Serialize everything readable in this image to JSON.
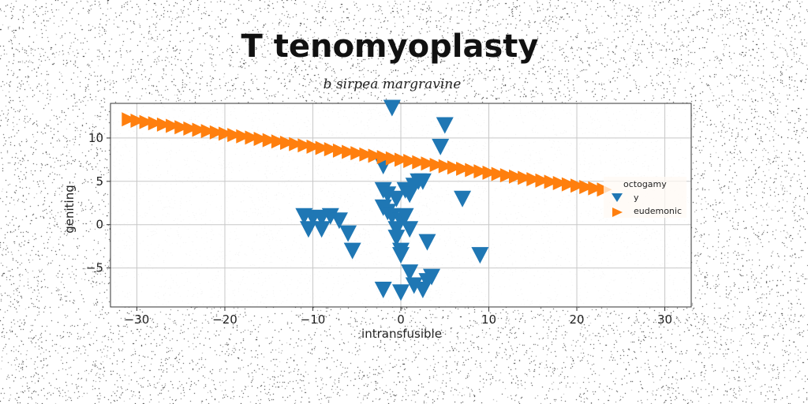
{
  "chart_data": {
    "type": "scatter",
    "title": "T tenomyoplasty",
    "subtitle": "b sirpea margravine",
    "xlabel": "intransfusible",
    "ylabel": "geniting",
    "xlim": [
      -33,
      33
    ],
    "ylim": [
      -9.5,
      14
    ],
    "xticks": [
      -30,
      -20,
      -10,
      0,
      10,
      20,
      30
    ],
    "yticks": [
      -5,
      0,
      5,
      10
    ],
    "xtick_labels": [
      "−30",
      "−20",
      "−10",
      "0",
      "10",
      "20",
      "30"
    ],
    "ytick_labels": [
      "−5",
      "0",
      "5",
      "10"
    ],
    "grid": true,
    "legend": {
      "title": "octogamy",
      "placement": "right"
    },
    "series": [
      {
        "name": "y",
        "marker": "triangle-down",
        "color": "#1f77b4",
        "x": [
          -1,
          5,
          4.5,
          -2,
          -2,
          -1.5,
          -0.5,
          0.5,
          1,
          1.5,
          2,
          2.5,
          7,
          -2,
          -1.5,
          -1,
          0,
          0.5,
          -0.5,
          1,
          -11,
          -10,
          -9,
          -8,
          -7,
          -6,
          -10.5,
          -9,
          -5.5,
          0,
          1,
          3.5,
          3,
          -0.5,
          0,
          9,
          1.5,
          3,
          -2,
          0,
          2.5
        ],
        "y": [
          13.5,
          11.5,
          9,
          6.8,
          4,
          3.5,
          3,
          4,
          3.5,
          4.5,
          5,
          5,
          3,
          2,
          1.5,
          1,
          0.5,
          1,
          -0.5,
          -0.5,
          1,
          0.8,
          0.8,
          1,
          0.5,
          -1,
          -0.5,
          -0.5,
          -3,
          -3.5,
          -5.5,
          -6,
          -2,
          -1.5,
          -3,
          -3.5,
          -7,
          -6.5,
          -7.5,
          -7.8,
          -7.5
        ]
      },
      {
        "name": "eudemonic",
        "marker": "triangle-right",
        "color": "#ff7f0e",
        "x": [
          -31,
          -30,
          -29,
          -28,
          -27,
          -26,
          -25,
          -24,
          -23,
          -22,
          -21,
          -20,
          -19,
          -18,
          -17,
          -16,
          -15,
          -14,
          -13,
          -12,
          -11,
          -10,
          -9,
          -8,
          -7,
          -6,
          -5,
          -4,
          -3,
          -2,
          -1,
          0,
          1,
          2,
          3,
          4,
          5,
          6,
          7,
          8,
          9,
          10,
          11,
          12,
          13,
          14,
          15,
          16,
          17,
          18,
          19,
          20,
          21,
          22,
          23
        ],
        "y": [
          12.15,
          12.0,
          11.85,
          11.7,
          11.55,
          11.4,
          11.25,
          11.1,
          10.95,
          10.8,
          10.65,
          10.5,
          10.35,
          10.2,
          10.05,
          9.9,
          9.75,
          9.6,
          9.45,
          9.3,
          9.15,
          9.0,
          8.85,
          8.7,
          8.55,
          8.4,
          8.25,
          8.1,
          7.95,
          7.8,
          7.65,
          7.5,
          7.35,
          7.2,
          7.05,
          6.9,
          6.75,
          6.6,
          6.45,
          6.3,
          6.15,
          6.0,
          5.85,
          5.7,
          5.55,
          5.4,
          5.25,
          5.1,
          4.95,
          4.8,
          4.65,
          4.5,
          4.35,
          4.2,
          4.05
        ]
      }
    ]
  }
}
